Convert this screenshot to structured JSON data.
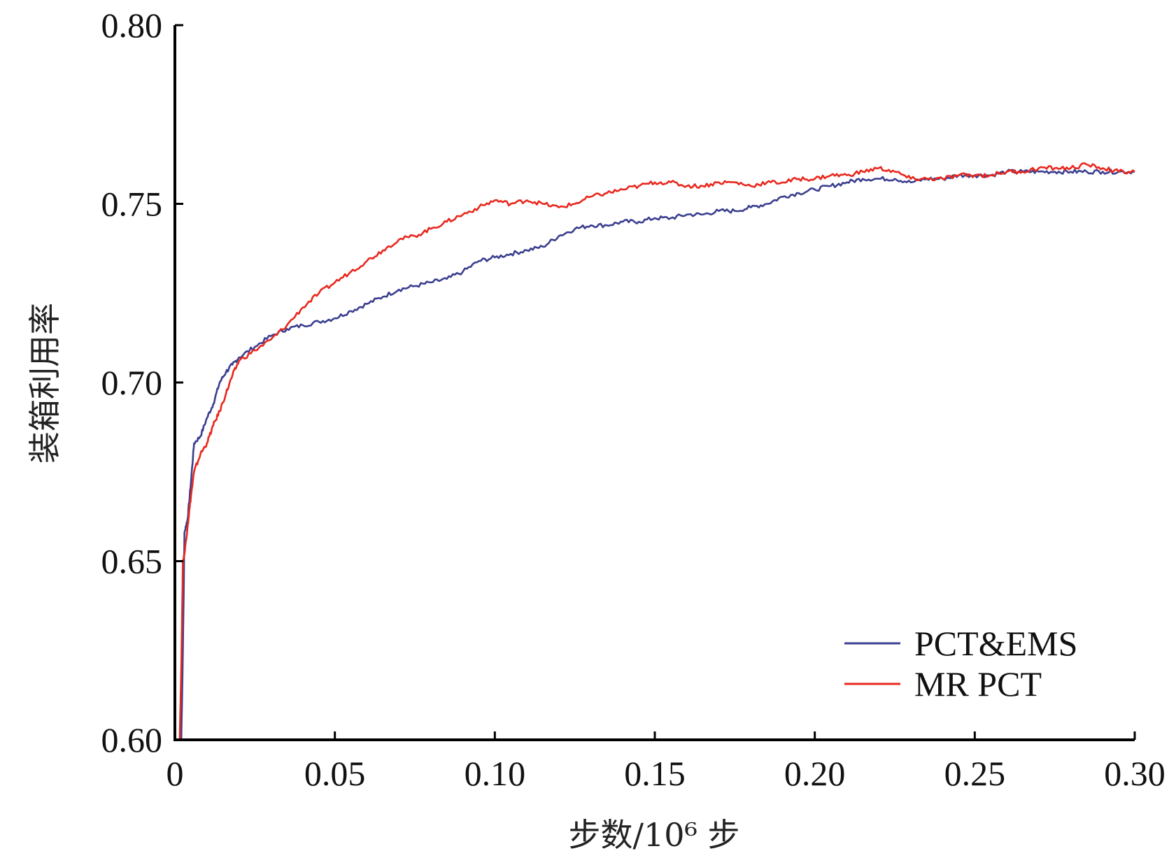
{
  "chart_data": {
    "type": "line",
    "title": "",
    "xlabel": "步数/10⁶ 步",
    "ylabel": "装箱利用率",
    "xlim": [
      0,
      0.3
    ],
    "ylim": [
      0.6,
      0.8
    ],
    "xticks": [
      "0",
      "0.05",
      "0.10",
      "0.15",
      "0.20",
      "0.25",
      "0.30"
    ],
    "xtick_values": [
      0,
      0.05,
      0.1,
      0.15,
      0.2,
      0.25,
      0.3
    ],
    "yticks": [
      "0.60",
      "0.65",
      "0.70",
      "0.75",
      "0.80"
    ],
    "ytick_values": [
      0.6,
      0.65,
      0.7,
      0.75,
      0.8
    ],
    "grid": false,
    "legend_position": "bottom-right",
    "series": [
      {
        "name": "PCT&EMS",
        "color": "#3b3f8f",
        "x": [
          0.002,
          0.0025,
          0.003,
          0.004,
          0.005,
          0.006,
          0.008,
          0.01,
          0.012,
          0.014,
          0.016,
          0.018,
          0.02,
          0.025,
          0.03,
          0.035,
          0.04,
          0.045,
          0.05,
          0.055,
          0.06,
          0.065,
          0.07,
          0.075,
          0.08,
          0.085,
          0.09,
          0.095,
          0.1,
          0.105,
          0.11,
          0.115,
          0.12,
          0.125,
          0.13,
          0.135,
          0.14,
          0.145,
          0.15,
          0.155,
          0.16,
          0.165,
          0.17,
          0.175,
          0.18,
          0.185,
          0.19,
          0.195,
          0.2,
          0.205,
          0.21,
          0.215,
          0.22,
          0.225,
          0.23,
          0.235,
          0.24,
          0.245,
          0.25,
          0.255,
          0.26,
          0.265,
          0.27,
          0.275,
          0.28,
          0.285,
          0.29,
          0.295,
          0.3
        ],
        "y": [
          0.6,
          0.625,
          0.658,
          0.662,
          0.672,
          0.683,
          0.685,
          0.69,
          0.694,
          0.7,
          0.703,
          0.705,
          0.707,
          0.71,
          0.713,
          0.715,
          0.716,
          0.717,
          0.718,
          0.72,
          0.722,
          0.724,
          0.726,
          0.727,
          0.728,
          0.729,
          0.731,
          0.734,
          0.735,
          0.736,
          0.737,
          0.738,
          0.741,
          0.743,
          0.744,
          0.744,
          0.745,
          0.745,
          0.746,
          0.746,
          0.747,
          0.747,
          0.748,
          0.748,
          0.749,
          0.75,
          0.752,
          0.753,
          0.754,
          0.755,
          0.756,
          0.757,
          0.757,
          0.757,
          0.756,
          0.757,
          0.757,
          0.758,
          0.758,
          0.758,
          0.759,
          0.759,
          0.759,
          0.759,
          0.759,
          0.759,
          0.759,
          0.759,
          0.759
        ]
      },
      {
        "name": "MR PCT",
        "color": "#e8281e",
        "x": [
          0.0015,
          0.002,
          0.0025,
          0.003,
          0.004,
          0.005,
          0.006,
          0.008,
          0.01,
          0.012,
          0.014,
          0.016,
          0.018,
          0.02,
          0.025,
          0.03,
          0.035,
          0.04,
          0.045,
          0.05,
          0.055,
          0.06,
          0.065,
          0.07,
          0.075,
          0.08,
          0.085,
          0.09,
          0.095,
          0.1,
          0.105,
          0.11,
          0.115,
          0.12,
          0.125,
          0.13,
          0.135,
          0.14,
          0.145,
          0.15,
          0.155,
          0.16,
          0.165,
          0.17,
          0.175,
          0.18,
          0.185,
          0.19,
          0.195,
          0.2,
          0.205,
          0.21,
          0.215,
          0.22,
          0.225,
          0.23,
          0.235,
          0.24,
          0.245,
          0.25,
          0.255,
          0.26,
          0.265,
          0.27,
          0.275,
          0.28,
          0.285,
          0.29,
          0.295,
          0.3
        ],
        "y": [
          0.6,
          0.62,
          0.65,
          0.652,
          0.66,
          0.668,
          0.675,
          0.68,
          0.683,
          0.688,
          0.692,
          0.697,
          0.702,
          0.706,
          0.709,
          0.712,
          0.716,
          0.721,
          0.725,
          0.728,
          0.731,
          0.734,
          0.737,
          0.74,
          0.741,
          0.743,
          0.745,
          0.747,
          0.749,
          0.751,
          0.75,
          0.751,
          0.75,
          0.749,
          0.75,
          0.752,
          0.753,
          0.754,
          0.755,
          0.756,
          0.756,
          0.755,
          0.755,
          0.756,
          0.756,
          0.755,
          0.756,
          0.756,
          0.757,
          0.757,
          0.758,
          0.758,
          0.759,
          0.76,
          0.759,
          0.757,
          0.757,
          0.757,
          0.758,
          0.758,
          0.758,
          0.759,
          0.759,
          0.76,
          0.76,
          0.76,
          0.761,
          0.76,
          0.759,
          0.759
        ]
      }
    ]
  }
}
